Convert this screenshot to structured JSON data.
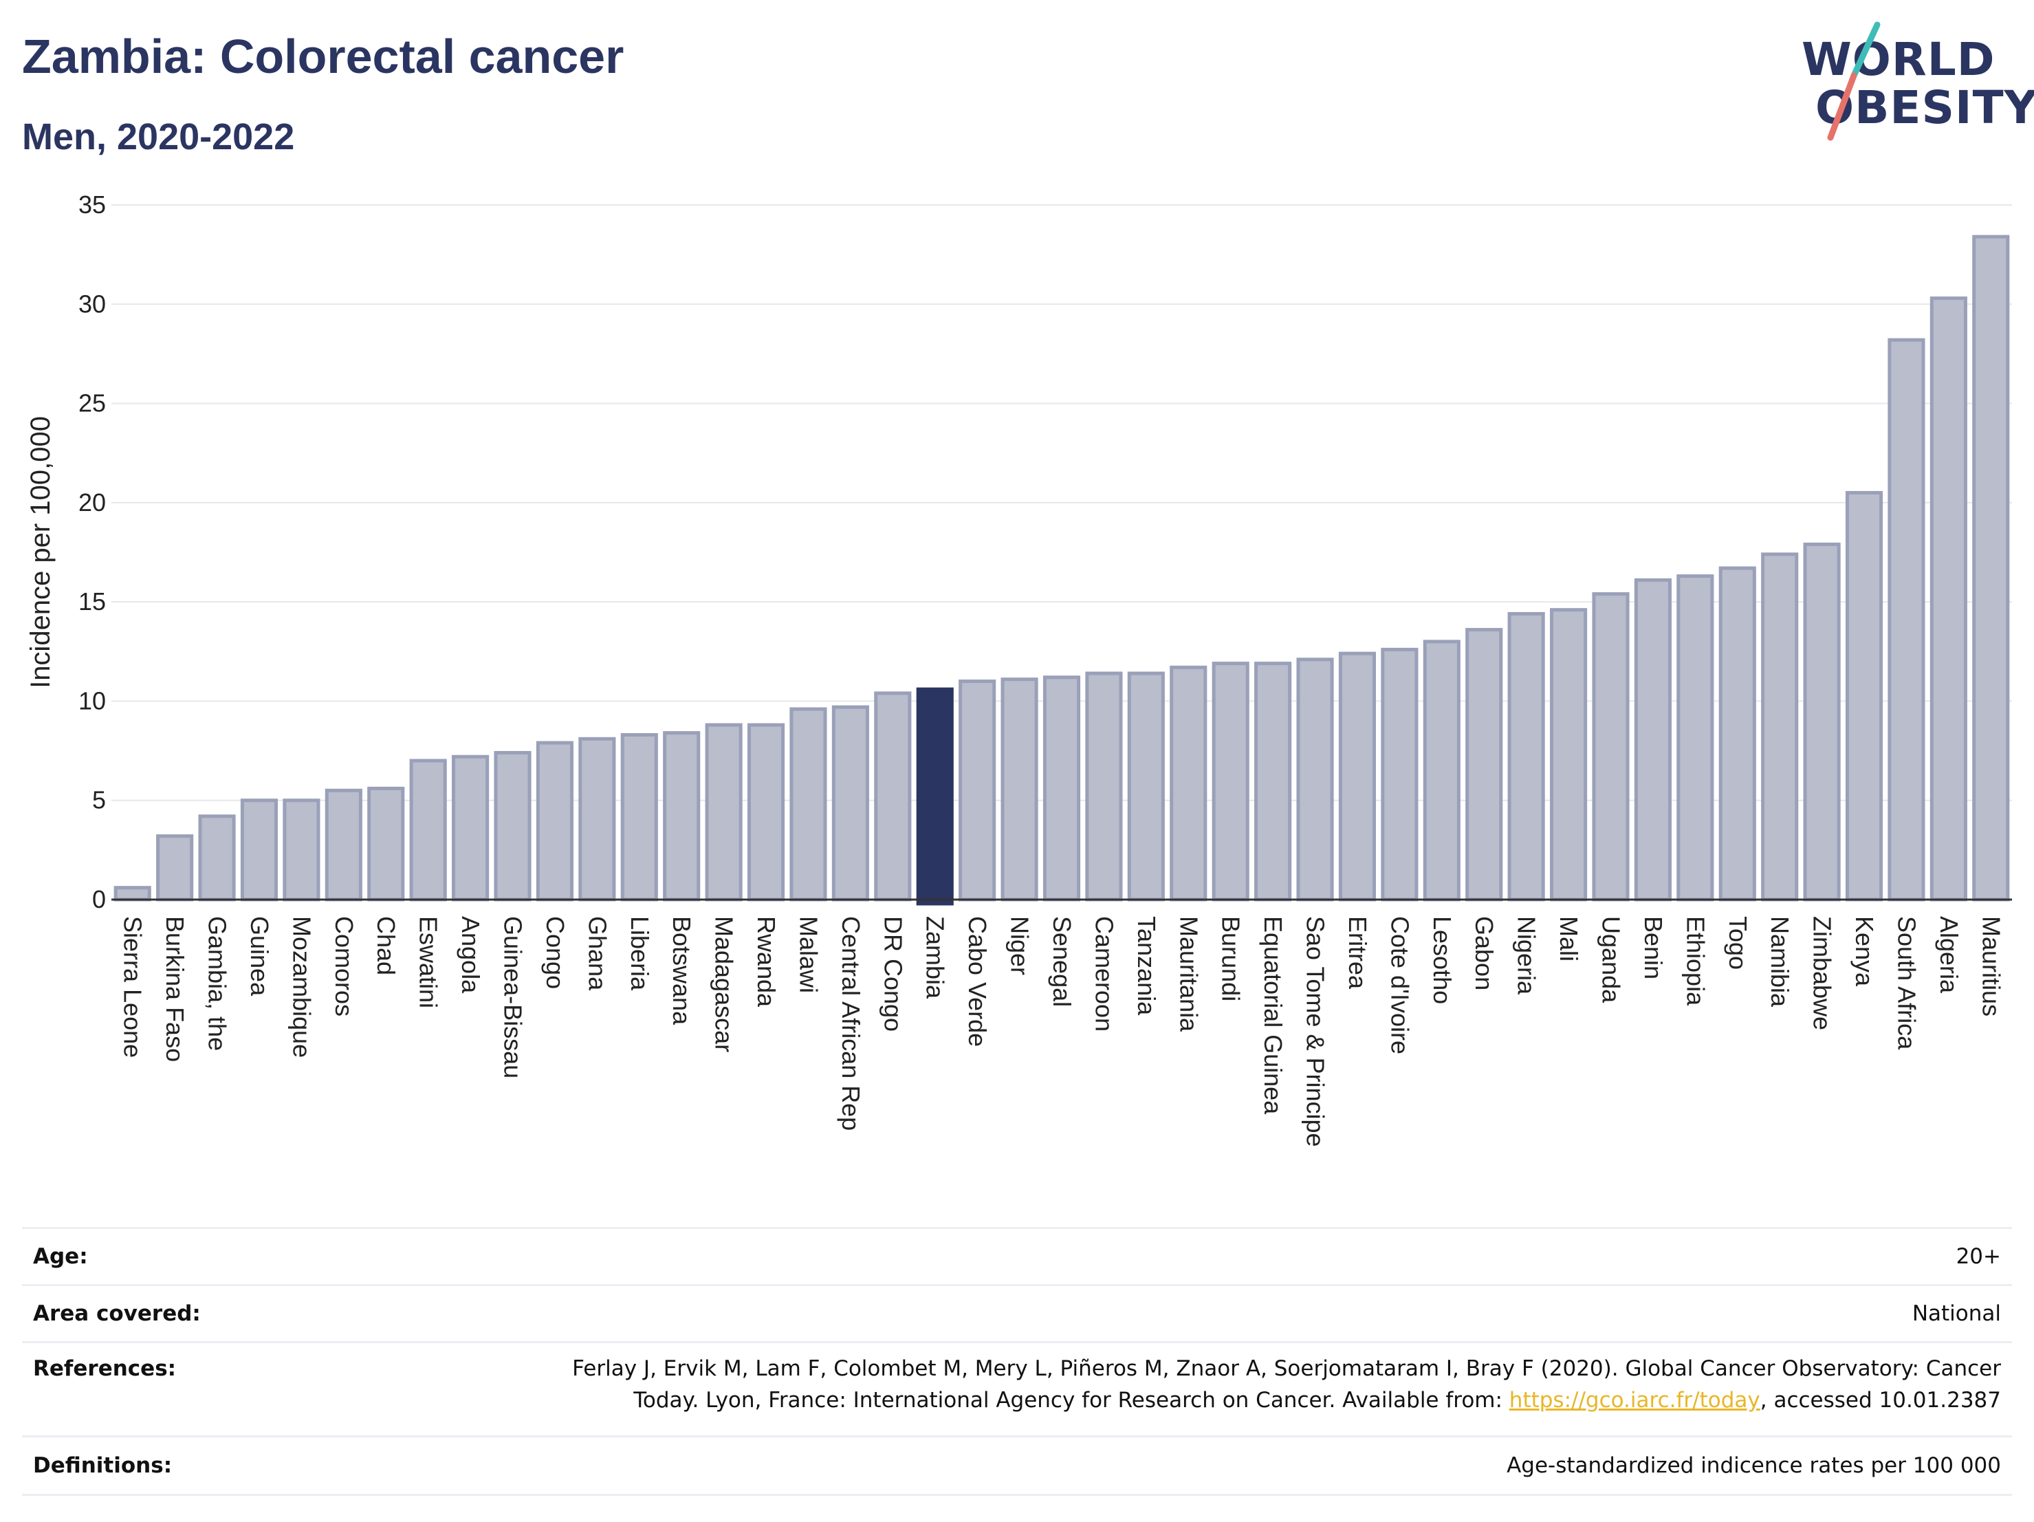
{
  "title": "Zambia: Colorectal cancer",
  "subtitle": "Men, 2020-2022",
  "logo": {
    "line1": "WORLD",
    "line2": "OBESITY",
    "accent_teal": "#3fbcb7",
    "accent_red": "#e5736a"
  },
  "chart_data": {
    "type": "bar",
    "ylabel": "Incidence per 100,000",
    "ylim": [
      0,
      35
    ],
    "yticks": [
      0,
      5,
      10,
      15,
      20,
      25,
      30,
      35
    ],
    "grid": true,
    "highlight": "Zambia",
    "colors": {
      "bar": "#b9bdcc",
      "bar_edge": "#9aa0b8",
      "highlight": "#2b3561"
    },
    "categories": [
      "Sierra Leone",
      "Burkina Faso",
      "Gambia, the",
      "Guinea",
      "Mozambique",
      "Comoros",
      "Chad",
      "Eswatini",
      "Angola",
      "Guinea-Bissau",
      "Congo",
      "Ghana",
      "Liberia",
      "Botswana",
      "Madagascar",
      "Rwanda",
      "Malawi",
      "Central African Rep",
      "DR Congo",
      "Zambia",
      "Cabo Verde",
      "Niger",
      "Senegal",
      "Cameroon",
      "Tanzania",
      "Mauritania",
      "Burundi",
      "Equatorial Guinea",
      "Sao Tome & Principe",
      "Eritrea",
      "Cote d'Ivoire",
      "Lesotho",
      "Gabon",
      "Nigeria",
      "Mali",
      "Uganda",
      "Benin",
      "Ethiopia",
      "Togo",
      "Namibia",
      "Zimbabwe",
      "Kenya",
      "South Africa",
      "Algeria",
      "Mauritius"
    ],
    "values": [
      0.6,
      3.2,
      4.2,
      5.0,
      5.0,
      5.5,
      5.6,
      7.0,
      7.2,
      7.4,
      7.9,
      8.1,
      8.3,
      8.4,
      8.8,
      8.8,
      9.6,
      9.7,
      10.4,
      10.6,
      11.0,
      11.1,
      11.2,
      11.4,
      11.4,
      11.7,
      11.9,
      11.9,
      12.1,
      12.4,
      12.6,
      13.0,
      13.6,
      14.4,
      14.6,
      15.4,
      16.1,
      16.3,
      16.7,
      17.4,
      17.9,
      20.5,
      28.2,
      30.3,
      33.4
    ]
  },
  "info": {
    "age_label": "Age:",
    "age_value": "20+",
    "area_label": "Area covered:",
    "area_value": "National",
    "references_label": "References:",
    "references_line1": "Ferlay J, Ervik M, Lam F, Colombet M, Mery L, Piñeros M, Znaor A, Soerjomataram I, Bray F (2020). Global Cancer Observatory: Cancer",
    "references_line2_pre": "Today. Lyon, France: International Agency for Research on Cancer. Available from: ",
    "references_link": "https://gco.iarc.fr/today",
    "references_line2_post": ", accessed 10.01.2387",
    "definitions_label": "Definitions:",
    "definitions_value": "Age-standardized indicence rates per 100 000"
  }
}
